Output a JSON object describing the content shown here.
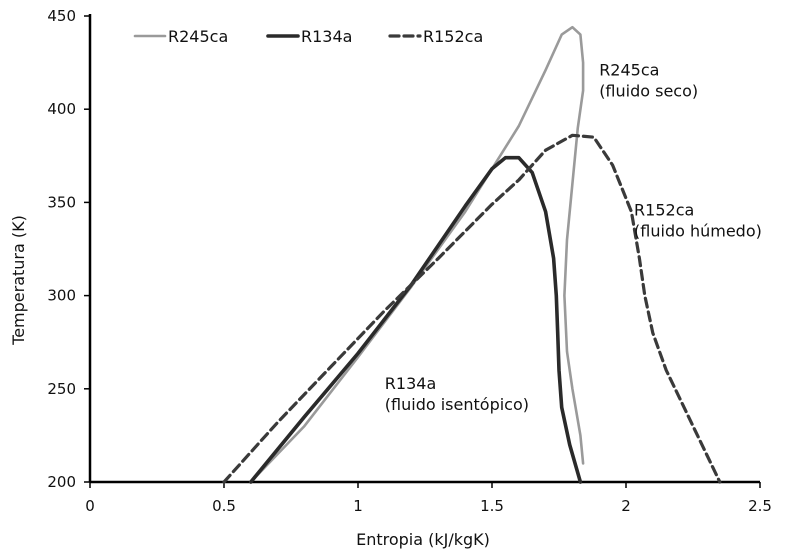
{
  "chart_data": {
    "type": "line",
    "xlabel": "Entropia (kJ/kgK)",
    "ylabel": "Temperatura (K)",
    "xlim": [
      0,
      2.5
    ],
    "ylim": [
      200,
      450
    ],
    "xticks": [
      0,
      0.5,
      1,
      1.5,
      2,
      2.5
    ],
    "yticks": [
      200,
      250,
      300,
      350,
      400,
      450
    ],
    "xtick_labels": [
      "0",
      "0.5",
      "1",
      "1.5",
      "2",
      "2.5"
    ],
    "ytick_labels": [
      "200",
      "250",
      "300",
      "350",
      "400",
      "450"
    ],
    "grid": false,
    "legend_position": "top-left",
    "series": [
      {
        "name": "R245ca",
        "color": "#9a9a9a",
        "style": "solid",
        "x": [
          0.6,
          0.8,
          1.0,
          1.2,
          1.4,
          1.6,
          1.7,
          1.76,
          1.8,
          1.83,
          1.84,
          1.84,
          1.82,
          1.8,
          1.78,
          1.77,
          1.78,
          1.8,
          1.83,
          1.84
        ],
        "y": [
          200,
          230,
          267,
          305,
          345,
          391,
          421,
          440,
          444,
          440,
          425,
          410,
          390,
          360,
          330,
          300,
          270,
          250,
          225,
          210
        ]
      },
      {
        "name": "R134a",
        "color": "#2a2a2a",
        "style": "solid",
        "x": [
          0.6,
          0.8,
          1.0,
          1.2,
          1.4,
          1.5,
          1.55,
          1.6,
          1.65,
          1.7,
          1.73,
          1.74,
          1.745,
          1.75,
          1.76,
          1.79,
          1.83
        ],
        "y": [
          200,
          235,
          269,
          306,
          348,
          368,
          374,
          374,
          366,
          345,
          320,
          300,
          280,
          260,
          240,
          220,
          200
        ]
      },
      {
        "name": "R152ca",
        "color": "#3a3a3a",
        "style": "dashed",
        "x": [
          0.5,
          0.7,
          0.9,
          1.1,
          1.3,
          1.5,
          1.6,
          1.7,
          1.8,
          1.88,
          1.95,
          2.02,
          2.05,
          2.07,
          2.1,
          2.15,
          2.2,
          2.25,
          2.3,
          2.35
        ],
        "y": [
          200,
          232,
          262,
          292,
          320,
          349,
          362,
          378,
          386,
          385,
          370,
          345,
          320,
          300,
          280,
          260,
          245,
          230,
          215,
          200
        ]
      }
    ],
    "annotations": [
      {
        "lines": [
          "R245ca",
          "(fluido seco)"
        ],
        "x": 1.9,
        "y": 418
      },
      {
        "lines": [
          "R152ca",
          "(fluido húmedo)"
        ],
        "x": 2.03,
        "y": 343
      },
      {
        "lines": [
          "R134a",
          "(fluido isentópico)"
        ],
        "x": 1.1,
        "y": 250
      }
    ]
  }
}
